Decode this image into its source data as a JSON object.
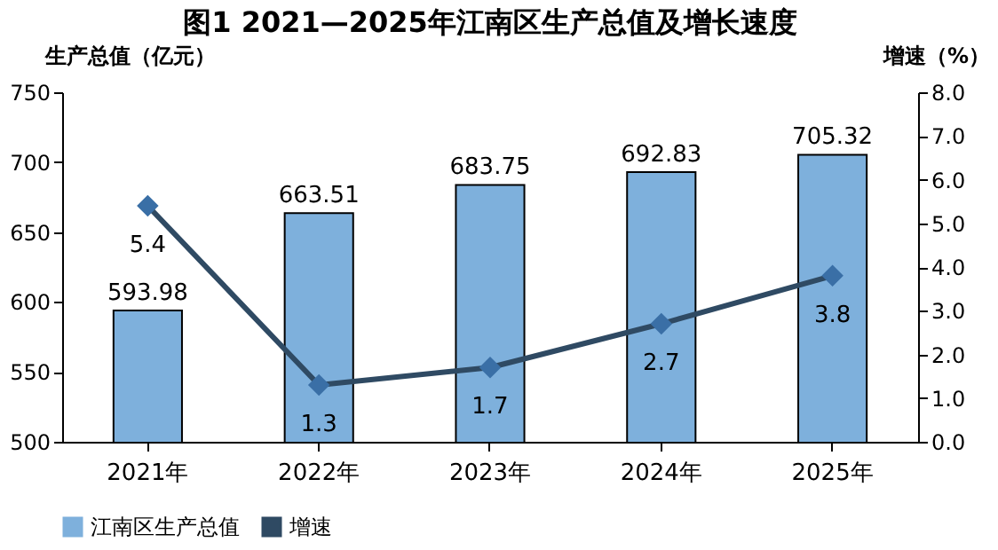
{
  "chart_data": {
    "type": "bar",
    "title": "图1  2021—2025年江南区生产总值及增长速度",
    "ylabel": "生产总值（亿元）",
    "y2label": "增速（%）",
    "categories": [
      "2021年",
      "2022年",
      "2023年",
      "2024年",
      "2025年"
    ],
    "series": [
      {
        "name": "江南区生产总值",
        "color": "#7eb0dc",
        "values": [
          593.98,
          663.51,
          683.75,
          692.83,
          705.32
        ]
      },
      {
        "name": "增速",
        "type": "line",
        "axis": "y2",
        "color": "#2f4a63",
        "marker": "diamond",
        "values": [
          5.4,
          1.3,
          1.7,
          2.7,
          3.8
        ]
      }
    ],
    "ylim": [
      500,
      750
    ],
    "yticks": [
      500,
      550,
      600,
      650,
      700,
      750
    ],
    "y2lim": [
      0,
      8
    ],
    "y2ticks": [
      {
        "value": 0,
        "label": "0.0"
      },
      {
        "value": 1,
        "label": "1.0"
      },
      {
        "value": 2,
        "label": "2.0"
      },
      {
        "value": 3,
        "label": "3.0"
      },
      {
        "value": 4,
        "label": "4.0"
      },
      {
        "value": 5,
        "label": "5.0"
      },
      {
        "value": 6,
        "label": "6.0"
      },
      {
        "value": 7,
        "label": "7.0"
      },
      {
        "value": 8,
        "label": "8.0"
      }
    ],
    "data_labels": true,
    "legend": "bottom",
    "grid": false
  }
}
